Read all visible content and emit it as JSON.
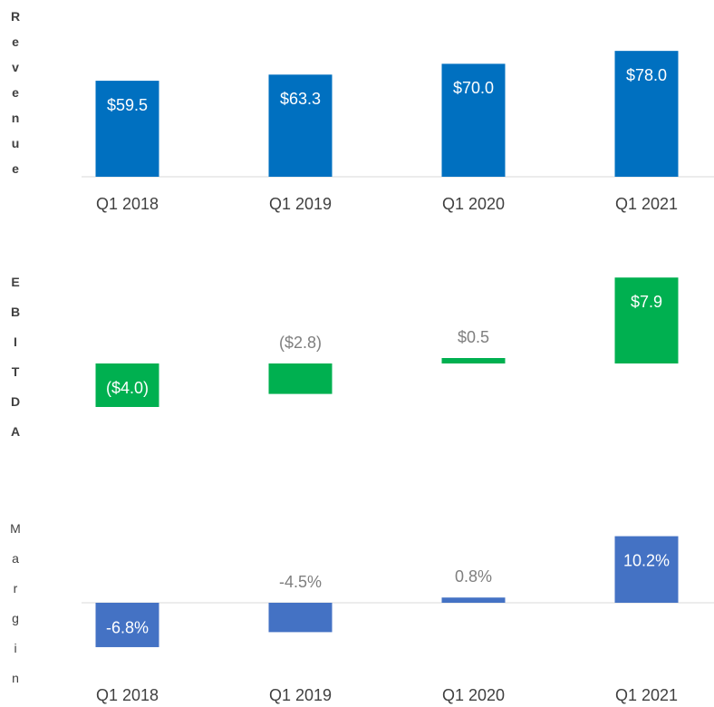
{
  "chart_data": [
    {
      "type": "bar",
      "axis_label": "Revenue",
      "categories": [
        "Q1 2018",
        "Q1 2019",
        "Q1 2020",
        "Q1 2021"
      ],
      "values": [
        59.5,
        63.3,
        70.0,
        78.0
      ],
      "value_labels": [
        "$59.5",
        "$63.3",
        "$70.0",
        "$78.0"
      ],
      "color": "#0070c0",
      "ylim": [
        0,
        80
      ],
      "baseline": true,
      "axis_label_bold": true
    },
    {
      "type": "bar",
      "axis_label": "EBITDA",
      "values": [
        -4.0,
        -2.8,
        0.5,
        7.9
      ],
      "value_labels": [
        "($4.0)",
        "($2.8)",
        "$0.5",
        "$7.9"
      ],
      "color": "#00b050",
      "ylim": [
        -8,
        8
      ],
      "baseline": false,
      "axis_label_bold": true
    },
    {
      "type": "bar",
      "axis_label": "Margin",
      "categories": [
        "Q1 2018",
        "Q1 2019",
        "Q1 2020",
        "Q1 2021"
      ],
      "values": [
        -6.8,
        -4.5,
        0.8,
        10.2
      ],
      "value_labels": [
        "-6.8%",
        "-4.5%",
        "0.8%",
        "10.2%"
      ],
      "color": "#4472c4",
      "ylim": [
        -10,
        12
      ],
      "baseline": true,
      "axis_label_bold": false
    }
  ]
}
